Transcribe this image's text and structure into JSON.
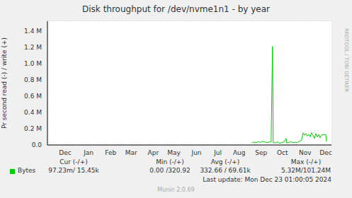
{
  "chart_data": {
    "type": "line",
    "title": "Disk throughput for /dev/nvme1n1 - by year",
    "y_label": "Pr second read (-) / write (+)",
    "x": [
      288,
      291,
      294,
      297,
      300,
      303,
      306,
      309,
      312,
      315,
      317,
      318,
      321,
      324,
      327,
      330,
      333,
      336,
      337,
      340,
      343,
      346,
      349,
      352,
      355,
      358,
      360,
      362,
      364,
      366,
      368,
      370,
      372,
      374,
      376,
      378,
      380,
      382,
      384,
      386,
      388,
      390,
      392,
      393
    ],
    "xlim": [
      0,
      400
    ],
    "xticks": [
      {
        "value": 25,
        "label": "Dec"
      },
      {
        "value": 58,
        "label": "Jan"
      },
      {
        "value": 89,
        "label": "Feb"
      },
      {
        "value": 118,
        "label": "Mar"
      },
      {
        "value": 149,
        "label": "Apr"
      },
      {
        "value": 178,
        "label": "May"
      },
      {
        "value": 210,
        "label": "Jun"
      },
      {
        "value": 240,
        "label": "Jul"
      },
      {
        "value": 270,
        "label": "Aug"
      },
      {
        "value": 301,
        "label": "Sep"
      },
      {
        "value": 331,
        "label": "Oct"
      },
      {
        "value": 363,
        "label": "Nov"
      },
      {
        "value": 392,
        "label": "Dec"
      }
    ],
    "ylim": [
      0,
      1520000
    ],
    "yticks": [
      {
        "value": 0,
        "label": "0.0"
      },
      {
        "value": 200000,
        "label": "0.2 M"
      },
      {
        "value": 400000,
        "label": "0.4 M"
      },
      {
        "value": 600000,
        "label": "0.6 M"
      },
      {
        "value": 800000,
        "label": "0.8 M"
      },
      {
        "value": 1000000,
        "label": "1.0 M"
      },
      {
        "value": 1200000,
        "label": "1.2 M"
      },
      {
        "value": 1400000,
        "label": "1.4 M"
      }
    ],
    "grid": true,
    "legend": "bottom",
    "series": [
      {
        "name": "Bytes",
        "color": "#00cc00",
        "values": [
          30000,
          35000,
          28000,
          40000,
          32000,
          45000,
          38000,
          30000,
          35000,
          40000,
          1210000,
          30000,
          25000,
          40000,
          20000,
          30000,
          35000,
          80000,
          25000,
          30000,
          40000,
          28000,
          35000,
          30000,
          45000,
          60000,
          150000,
          120000,
          140000,
          110000,
          130000,
          100000,
          150000,
          120000,
          80000,
          140000,
          100000,
          130000,
          90000,
          120000,
          130000,
          125000,
          130000,
          40000
        ]
      }
    ],
    "annotations": {
      "stats_headers": [
        "Cur (-/+)",
        "Min (-/+)",
        "Avg (-/+)",
        "Max (-/+)"
      ],
      "stats_values": [
        "97.23m/ 15.45k",
        "0.00 /320.92",
        "332.66 / 69.61k",
        "5.32M/101.24M"
      ],
      "last_update": "Last update: Mon Dec 23 01:00:05 2024",
      "credit": "Munin 2.0.69",
      "watermark": "RRDTOOL / TOBI OETIKER"
    }
  }
}
